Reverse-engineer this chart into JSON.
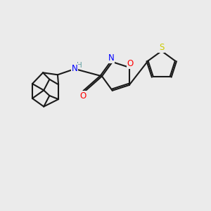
{
  "bg_color": "#ebebeb",
  "bond_color": "#1a1a1a",
  "N_color": "#0000ff",
  "O_color": "#ff0000",
  "S_color": "#cccc00",
  "NH_color": "#5f9ea0",
  "line_width": 1.5,
  "figsize": [
    3.0,
    3.0
  ],
  "dpi": 100,
  "xlim": [
    0,
    10
  ],
  "ylim": [
    0,
    10
  ]
}
